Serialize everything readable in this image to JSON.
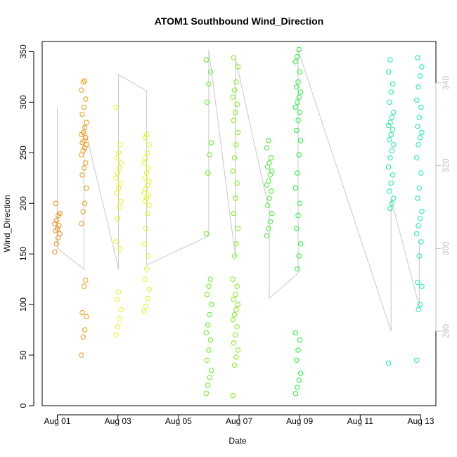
{
  "chart_data": {
    "type": "scatter",
    "title": "ATOM1 Southbound Wind_Direction",
    "xlabel": "Date",
    "ylabel": "Wind_Direction",
    "x_unit": "days since Aug 01",
    "xlim": [
      -0.5,
      12.5
    ],
    "ylim": [
      0,
      360
    ],
    "x_ticks": [
      {
        "value": 0,
        "label": "Aug 01"
      },
      {
        "value": 2,
        "label": "Aug 03"
      },
      {
        "value": 4,
        "label": "Aug 05"
      },
      {
        "value": 6,
        "label": "Aug 07"
      },
      {
        "value": 8,
        "label": "Aug 09"
      },
      {
        "value": 10,
        "label": "Aug 11"
      },
      {
        "value": 12,
        "label": "Aug 13"
      }
    ],
    "y_ticks": [
      0,
      50,
      100,
      150,
      200,
      250,
      300,
      350
    ],
    "y2_ticks": [
      280,
      300,
      320,
      340
    ],
    "y2_lim": [
      262,
      350
    ],
    "grid": false,
    "legend": "none",
    "point_clusters": [
      {
        "x": 0.0,
        "color": "#f28c18",
        "y_values": [
          152,
          160,
          166,
          170,
          173,
          175,
          178,
          180,
          183,
          188,
          190,
          200
        ]
      },
      {
        "x": 0.88,
        "color": "#f39a10",
        "y_values": [
          50,
          68,
          75,
          88,
          92,
          118,
          124,
          180,
          192,
          200,
          215,
          228,
          235,
          240,
          248,
          252,
          255,
          258,
          260,
          262,
          265,
          268,
          270,
          275,
          280,
          288,
          295,
          303,
          312,
          320,
          321
        ]
      },
      {
        "x": 2.02,
        "color": "#e8f020",
        "y_values": [
          70,
          78,
          86,
          95,
          105,
          112,
          155,
          162,
          185,
          196,
          202,
          210,
          215,
          220,
          225,
          230,
          235,
          240,
          245,
          250,
          258,
          295
        ]
      },
      {
        "x": 2.95,
        "color": "#dcf820",
        "y_values": [
          93,
          98,
          106,
          115,
          125,
          135,
          148,
          160,
          175,
          190,
          198,
          202,
          205,
          208,
          210,
          214,
          218,
          222,
          225,
          230,
          235,
          240,
          245,
          250,
          258,
          265,
          268
        ]
      },
      {
        "x": 5.0,
        "color": "#5ef218",
        "y_values": [
          12,
          20,
          28,
          35,
          45,
          55,
          65,
          72,
          80,
          90,
          100,
          110,
          118,
          125,
          170,
          230,
          248,
          260,
          300,
          318,
          330,
          342
        ]
      },
      {
        "x": 5.88,
        "color": "#7af012",
        "y_values": [
          10,
          40,
          48,
          55,
          62,
          70,
          78,
          85,
          90,
          95,
          100,
          105,
          110,
          118,
          125,
          148,
          160,
          175,
          190,
          205,
          220,
          232,
          245,
          258,
          270,
          282,
          290,
          298,
          305,
          312,
          320,
          335,
          344
        ]
      },
      {
        "x": 7.0,
        "color": "#40f030",
        "y_values": [
          168,
          175,
          182,
          190,
          198,
          205,
          212,
          218,
          222,
          228,
          232,
          236,
          240,
          245,
          255,
          262
        ]
      },
      {
        "x": 7.95,
        "color": "#22f03a",
        "y_values": [
          12,
          18,
          25,
          32,
          45,
          55,
          65,
          72,
          135,
          148,
          160,
          175,
          188,
          200,
          215,
          230,
          248,
          262,
          272,
          282,
          290,
          295,
          300,
          305,
          310,
          315,
          320,
          330,
          340,
          345,
          352
        ]
      },
      {
        "x": 11.02,
        "color": "#14eea0",
        "y_values": [
          42,
          195,
          200,
          205,
          212,
          220,
          228,
          236,
          245,
          252,
          258,
          263,
          268,
          273,
          277,
          280,
          285,
          290,
          300,
          310,
          318,
          330,
          342
        ]
      },
      {
        "x": 11.95,
        "color": "#10eeb4",
        "y_values": [
          45,
          95,
          100,
          118,
          122,
          148,
          162,
          170,
          178,
          185,
          192,
          205,
          215,
          230,
          245,
          258,
          265,
          270,
          276,
          285,
          295,
          302,
          315,
          326,
          335,
          344
        ]
      }
    ],
    "gray_series": {
      "axis": "right",
      "path": [
        [
          0.0,
          334.0
        ],
        [
          0.0,
          300.0
        ],
        [
          0.88,
          295.0
        ],
        [
          0.88,
          330.0
        ],
        [
          2.02,
          295.0
        ],
        [
          2.02,
          342.0
        ],
        [
          2.95,
          338.0
        ],
        [
          2.95,
          296.0
        ],
        [
          5.0,
          303.0
        ],
        [
          5.0,
          348.0
        ],
        [
          5.88,
          298.0
        ],
        [
          5.88,
          346.0
        ],
        [
          7.0,
          309.0
        ],
        [
          7.0,
          288.0
        ],
        [
          7.95,
          294.0
        ],
        [
          7.95,
          348.0
        ],
        [
          11.02,
          280.0
        ],
        [
          11.02,
          312.0
        ],
        [
          11.95,
          286.0
        ],
        [
          11.95,
          302.0
        ]
      ]
    }
  }
}
